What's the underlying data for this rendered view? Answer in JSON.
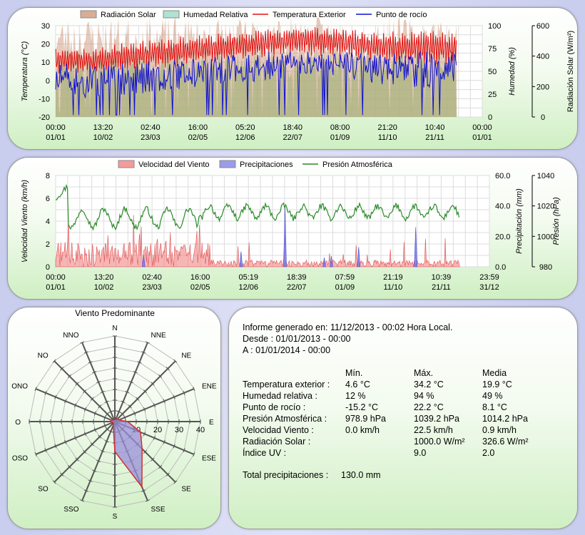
{
  "chart_data": [
    {
      "type": "line",
      "legend": [
        "Radiación Solar",
        "Humedad Relativa",
        "Temperatura Exterior",
        "Punto de rocío"
      ],
      "colors": {
        "solar": "#c98a6a",
        "humidity": "#8fd68f",
        "temperature": "#e01010",
        "dewpoint": "#1010d0"
      },
      "ylabel_left": "Temperatura (°C)",
      "ylabel_mid": "Humedad (%)",
      "ylabel_right": "Radiación Solar (W/m²)",
      "y_left_ticks": [
        30,
        20,
        10,
        0,
        -10,
        -20
      ],
      "y_mid_ticks": [
        100,
        75,
        50,
        25,
        0
      ],
      "y_right_ticks": [
        600,
        400,
        200,
        0
      ],
      "x_ticks": [
        [
          "00:00",
          "01/01"
        ],
        [
          "13:20",
          "10/02"
        ],
        [
          "02:40",
          "23/03"
        ],
        [
          "16:00",
          "02/05"
        ],
        [
          "05:20",
          "12/06"
        ],
        [
          "18:40",
          "22/07"
        ],
        [
          "08:00",
          "01/09"
        ],
        [
          "21:20",
          "11/10"
        ],
        [
          "10:40",
          "21/11"
        ],
        [
          "00:00",
          "01/01"
        ]
      ],
      "ylim_temp": [
        -20,
        30
      ],
      "ylim_hum": [
        0,
        100
      ],
      "ylim_solar": [
        0,
        600
      ],
      "data_fraction_of_year": 0.94,
      "temperature_envelope": {
        "months": [
          1,
          2,
          3,
          4,
          5,
          6,
          7,
          8,
          9,
          10,
          11
        ],
        "max": [
          18,
          16,
          20,
          22,
          24,
          25,
          28,
          29,
          28,
          25,
          26
        ],
        "min": [
          5,
          5,
          6,
          8,
          10,
          12,
          14,
          15,
          14,
          12,
          10
        ]
      },
      "dewpoint_envelope": {
        "months": [
          1,
          2,
          3,
          4,
          5,
          6,
          7,
          8,
          9,
          10,
          11
        ],
        "max": [
          10,
          8,
          10,
          11,
          12,
          14,
          16,
          17,
          16,
          14,
          16
        ],
        "min": [
          -10,
          -10,
          -8,
          -6,
          -4,
          -2,
          0,
          2,
          2,
          -2,
          -4
        ]
      }
    },
    {
      "type": "line",
      "legend": [
        "Velocidad del Viento",
        "Precipitaciones",
        "Presión Atmosférica"
      ],
      "colors": {
        "wind": "#f07a7a",
        "rain": "#7a7ae8",
        "pressure": "#2a8a2a"
      },
      "ylabel_left": "Velocidad Viento (km/h)",
      "ylabel_mid": "Precipitación (mm)",
      "ylabel_right": "Presión (hPa)",
      "y_left_ticks": [
        8,
        6,
        4,
        2,
        0
      ],
      "y_mid_ticks": [
        "60.0",
        "40.0",
        "20.0",
        "0.0"
      ],
      "y_right_ticks": [
        1040,
        1020,
        1000,
        980
      ],
      "x_ticks": [
        [
          "00:00",
          "01/01"
        ],
        [
          "13:20",
          "10/02"
        ],
        [
          "02:40",
          "23/03"
        ],
        [
          "16:00",
          "02/05"
        ],
        [
          "05:19",
          "12/06"
        ],
        [
          "18:39",
          "22/07"
        ],
        [
          "07:59",
          "01/09"
        ],
        [
          "21:19",
          "11/10"
        ],
        [
          "10:39",
          "21/11"
        ],
        [
          "23:59",
          "31/12"
        ]
      ],
      "ylim_wind": [
        0,
        8
      ],
      "ylim_rain": [
        0,
        60
      ],
      "ylim_pressure": [
        980,
        1040
      ],
      "rain_peaks": [
        {
          "day": 74,
          "mm": 8
        },
        {
          "day": 156,
          "mm": 10
        },
        {
          "day": 193,
          "mm": 40
        },
        {
          "day": 226,
          "mm": 6
        },
        {
          "day": 232,
          "mm": 7
        },
        {
          "day": 255,
          "mm": 13
        },
        {
          "day": 303,
          "mm": 26
        }
      ]
    },
    {
      "type": "radar",
      "title": "Viento Predominante",
      "directions": [
        "N",
        "NNE",
        "NE",
        "ENE",
        "E",
        "ESE",
        "SE",
        "SSE",
        "S",
        "SSO",
        "SO",
        "OSO",
        "O",
        "ONO",
        "NO",
        "NNO"
      ],
      "ring_labels": [
        "10",
        "20",
        "30",
        "40"
      ],
      "rmax": 40,
      "values": [
        1,
        1,
        2,
        2,
        6,
        13,
        18,
        33,
        14,
        2,
        1,
        1,
        2,
        2,
        1,
        1
      ],
      "fill": "#9a8fd8",
      "stroke": "#d03030"
    }
  ],
  "report": {
    "generated": "Informe generado en: 11/12/2013 - 00:02 Hora Local.",
    "from": "Desde : 01/01/2013 - 00:00",
    "to": "A : 01/01/2014 - 00:00",
    "headers": {
      "min": "Mín.",
      "max": "Máx.",
      "avg": "Media"
    },
    "rows": [
      {
        "label": "Temperatura exterior :",
        "min": "4.6 °C",
        "max": "34.2 °C",
        "avg": "19.9 °C"
      },
      {
        "label": "Humedad relativa :",
        "min": "12 %",
        "max": "94 %",
        "avg": "49 %"
      },
      {
        "label": "Punto de rocío :",
        "min": "-15.2 °C",
        "max": "22.2 °C",
        "avg": "8.1 °C"
      },
      {
        "label": "Presión Atmosférica :",
        "min": "978.9 hPa",
        "max": "1039.2 hPa",
        "avg": "1014.2 hPa"
      },
      {
        "label": "Velocidad Viento :",
        "min": "0.0 km/h",
        "max": "22.5 km/h",
        "avg": "0.9 km/h"
      },
      {
        "label": "Radiación Solar :",
        "min": "",
        "max": "1000.0 W/m²",
        "avg": "326.6 W/m²"
      },
      {
        "label": "Índice UV :",
        "min": "",
        "max": "9.0",
        "avg": "2.0"
      }
    ],
    "total_label": "Total precipitaciones :",
    "total_value": "130.0 mm"
  }
}
